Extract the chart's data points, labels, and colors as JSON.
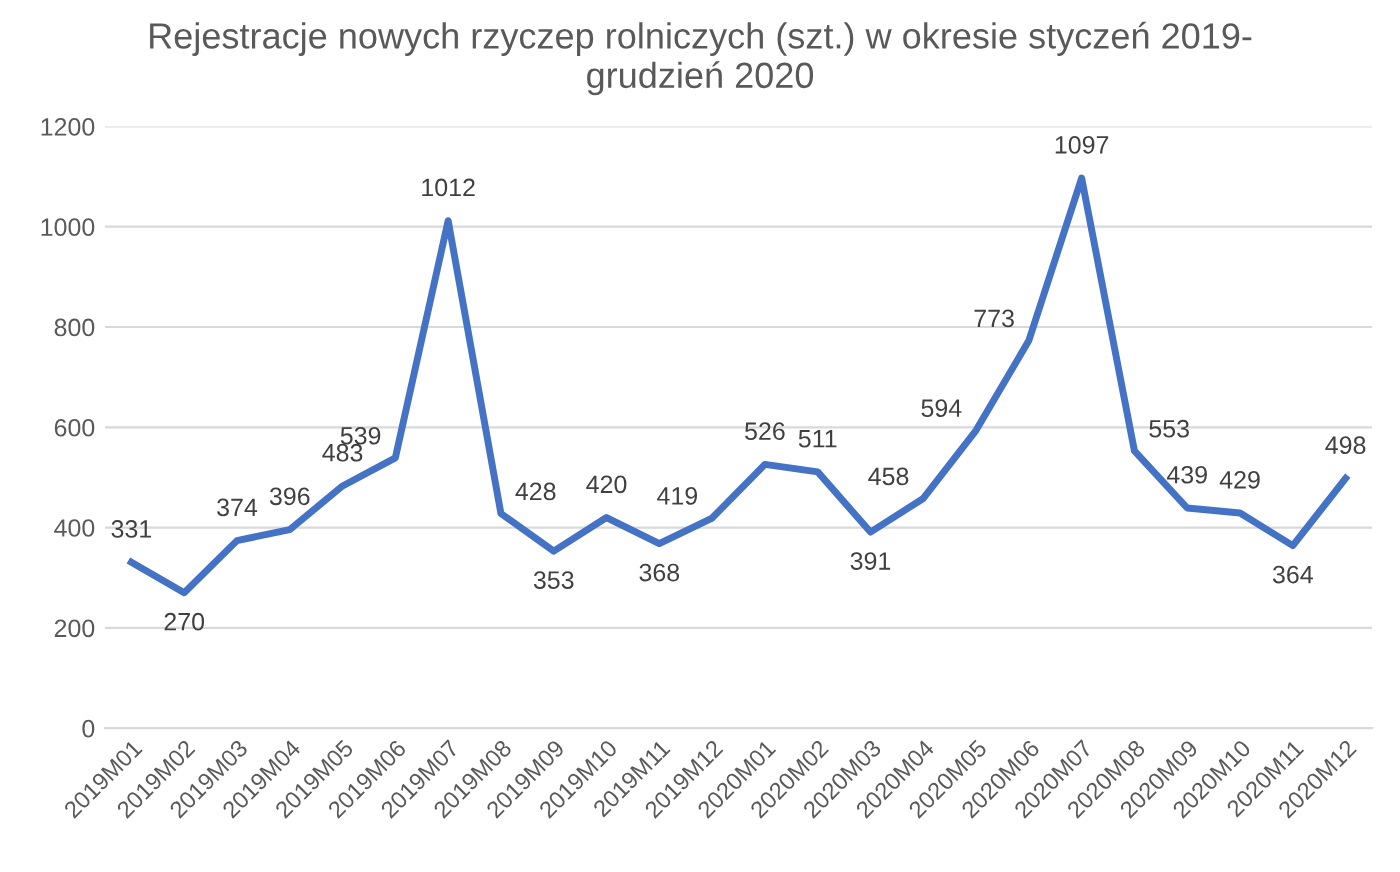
{
  "chart_data": {
    "type": "line",
    "title": "Rejestracje nowych rzyczep rolniczych (szt.) w okresie styczeń 2019-\ngrudzień 2020",
    "categories": [
      "2019M01",
      "2019M02",
      "2019M03",
      "2019M04",
      "2019M05",
      "2019M06",
      "2019M07",
      "2019M08",
      "2019M09",
      "2019M10",
      "2019M11",
      "2019M12",
      "2020M01",
      "2020M02",
      "2020M03",
      "2020M04",
      "2020M05",
      "2020M06",
      "2020M07",
      "2020M08",
      "2020M09",
      "2020M10",
      "2020M11",
      "2020M12"
    ],
    "series": [
      {
        "color": "#4472c4",
        "values": [
          331,
          270,
          374,
          396,
          483,
          539,
          1012,
          428,
          353,
          420,
          368,
          419,
          526,
          511,
          391,
          458,
          594,
          773,
          1097,
          553,
          439,
          429,
          364,
          498
        ]
      }
    ],
    "ylim": [
      0,
      1200
    ],
    "yticks": [
      0,
      200,
      400,
      600,
      800,
      1000,
      1200
    ],
    "grid": "y",
    "data_labels": true,
    "marker": "none",
    "line_style": "solid",
    "legend": false
  }
}
